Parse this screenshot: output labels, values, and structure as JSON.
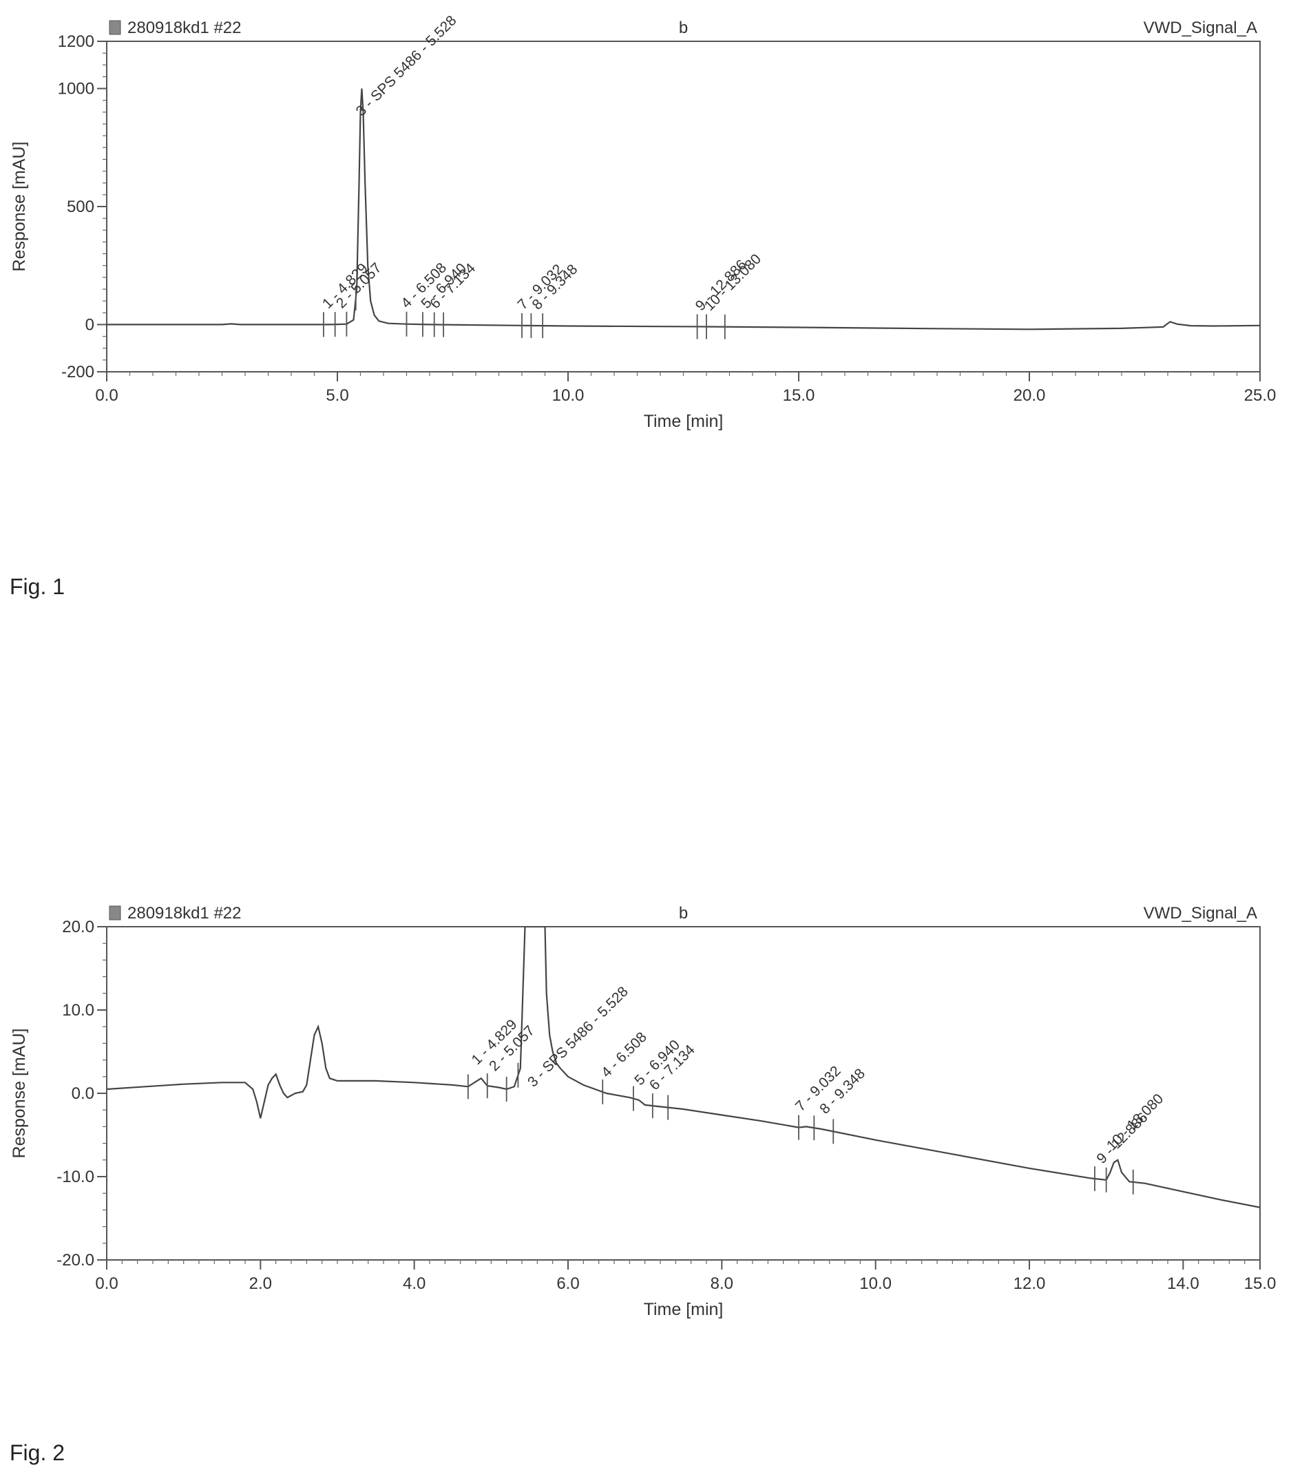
{
  "chart_data": [
    {
      "type": "line",
      "header_left": "280918kd1 #22",
      "header_center": "b",
      "header_right": "VWD_Signal_A",
      "xlabel": "Time [min]",
      "ylabel": "Response [mAU]",
      "xlim": [
        0,
        25
      ],
      "ylim": [
        -200,
        1200
      ],
      "x_ticks": [
        0,
        5,
        10,
        15,
        20,
        25
      ],
      "x_tick_labels": [
        "0.0",
        "5.0",
        "10.0",
        "15.0",
        "20.0",
        "25.0"
      ],
      "y_ticks": [
        -200,
        0,
        500,
        1000,
        1200
      ],
      "y_tick_labels": [
        "-200",
        "0",
        "500",
        "1000",
        "1200"
      ],
      "series": [
        {
          "points": [
            [
              0,
              0
            ],
            [
              2.5,
              0
            ],
            [
              2.7,
              3
            ],
            [
              2.9,
              0
            ],
            [
              4.8,
              0
            ],
            [
              5.0,
              1
            ],
            [
              5.2,
              2
            ],
            [
              5.35,
              20
            ],
            [
              5.42,
              150
            ],
            [
              5.47,
              600
            ],
            [
              5.5,
              900
            ],
            [
              5.528,
              1000
            ],
            [
              5.56,
              900
            ],
            [
              5.6,
              600
            ],
            [
              5.66,
              250
            ],
            [
              5.72,
              100
            ],
            [
              5.8,
              40
            ],
            [
              5.9,
              15
            ],
            [
              6.1,
              5
            ],
            [
              6.5,
              2
            ],
            [
              7,
              0
            ],
            [
              9,
              -4
            ],
            [
              10,
              -6
            ],
            [
              12,
              -8
            ],
            [
              13,
              -9
            ],
            [
              15,
              -12
            ],
            [
              18,
              -17
            ],
            [
              20,
              -20
            ],
            [
              22,
              -16
            ],
            [
              22.9,
              -10
            ],
            [
              23.05,
              12
            ],
            [
              23.2,
              2
            ],
            [
              23.5,
              -5
            ],
            [
              24,
              -6
            ],
            [
              25,
              -4
            ]
          ]
        }
      ],
      "peak_labels": [
        {
          "x": 4.8,
          "text": "1 - 4.829"
        },
        {
          "x": 5.1,
          "text": "2 - 5.057"
        },
        {
          "x": 5.528,
          "text": "3 - SPS 5486 - 5.528"
        },
        {
          "x": 6.508,
          "text": "4 - 6.508"
        },
        {
          "x": 6.94,
          "text": "5 - 6.940"
        },
        {
          "x": 7.134,
          "text": "6 - 7.134"
        },
        {
          "x": 9.032,
          "text": "7 - 9.032"
        },
        {
          "x": 9.348,
          "text": "8 - 9.348"
        },
        {
          "x": 12.886,
          "text": "9 - 12.886"
        },
        {
          "x": 13.08,
          "text": "10 - 13.080"
        }
      ],
      "boundary_marks": [
        4.7,
        4.95,
        5.2,
        5.4,
        6.5,
        6.85,
        7.1,
        7.3,
        9.0,
        9.2,
        9.45,
        12.8,
        13.0,
        13.4
      ]
    },
    {
      "type": "line",
      "header_left": "280918kd1 #22",
      "header_center": "b",
      "header_right": "VWD_Signal_A",
      "xlabel": "Time [min]",
      "ylabel": "Response [mAU]",
      "xlim": [
        0,
        15
      ],
      "ylim": [
        -20,
        20
      ],
      "x_ticks": [
        0,
        2,
        4,
        6,
        8,
        10,
        12,
        14,
        15
      ],
      "x_tick_labels": [
        "0.0",
        "2.0",
        "4.0",
        "6.0",
        "8.0",
        "10.0",
        "12.0",
        "14.0",
        "15.0"
      ],
      "y_ticks": [
        -20,
        -10,
        0,
        10,
        20
      ],
      "y_tick_labels": [
        "-20.0",
        "-10.0",
        "0.0",
        "10.0",
        "20.0"
      ],
      "series": [
        {
          "points": [
            [
              0,
              0.5
            ],
            [
              0.5,
              0.8
            ],
            [
              1,
              1.1
            ],
            [
              1.5,
              1.3
            ],
            [
              1.8,
              1.3
            ],
            [
              1.9,
              0.5
            ],
            [
              1.95,
              -1
            ],
            [
              2.0,
              -3
            ],
            [
              2.05,
              -1
            ],
            [
              2.1,
              1
            ],
            [
              2.15,
              1.8
            ],
            [
              2.2,
              2.3
            ],
            [
              2.25,
              1
            ],
            [
              2.3,
              0
            ],
            [
              2.35,
              -0.5
            ],
            [
              2.45,
              0
            ],
            [
              2.55,
              0.2
            ],
            [
              2.6,
              1
            ],
            [
              2.65,
              4
            ],
            [
              2.7,
              7
            ],
            [
              2.75,
              8
            ],
            [
              2.8,
              6
            ],
            [
              2.85,
              3
            ],
            [
              2.9,
              1.8
            ],
            [
              3.0,
              1.5
            ],
            [
              3.5,
              1.5
            ],
            [
              4.0,
              1.3
            ],
            [
              4.5,
              1.0
            ],
            [
              4.7,
              0.8
            ],
            [
              4.8,
              1.4
            ],
            [
              4.87,
              1.8
            ],
            [
              4.95,
              0.9
            ],
            [
              5.1,
              0.7
            ],
            [
              5.2,
              0.5
            ],
            [
              5.3,
              0.8
            ],
            [
              5.38,
              3
            ],
            [
              5.44,
              20
            ],
            [
              5.46,
              20
            ],
            [
              5.7,
              20
            ],
            [
              5.72,
              12
            ],
            [
              5.76,
              7
            ],
            [
              5.8,
              5
            ],
            [
              5.85,
              3.6
            ],
            [
              5.9,
              3
            ],
            [
              6.0,
              2
            ],
            [
              6.2,
              1
            ],
            [
              6.5,
              0
            ],
            [
              6.8,
              -0.5
            ],
            [
              6.92,
              -0.8
            ],
            [
              7.0,
              -1.4
            ],
            [
              7.2,
              -1.6
            ],
            [
              7.5,
              -1.9
            ],
            [
              8,
              -2.6
            ],
            [
              8.5,
              -3.3
            ],
            [
              9.0,
              -4.1
            ],
            [
              9.1,
              -4.0
            ],
            [
              9.3,
              -4.3
            ],
            [
              10,
              -5.6
            ],
            [
              11,
              -7.3
            ],
            [
              12,
              -9.0
            ],
            [
              12.8,
              -10.2
            ],
            [
              13.0,
              -10.4
            ],
            [
              13.05,
              -9.5
            ],
            [
              13.1,
              -8.3
            ],
            [
              13.15,
              -8.0
            ],
            [
              13.2,
              -9.5
            ],
            [
              13.3,
              -10.6
            ],
            [
              13.5,
              -10.8
            ],
            [
              14,
              -11.8
            ],
            [
              14.5,
              -12.8
            ],
            [
              15,
              -13.7
            ]
          ]
        }
      ],
      "peak_labels": [
        {
          "x": 4.82,
          "text": "1 - 4.829"
        },
        {
          "x": 5.05,
          "text": "2 - 5.057"
        },
        {
          "x": 5.55,
          "text": "3 - SPS 5486 - 5.528"
        },
        {
          "x": 6.508,
          "text": "4 - 6.508"
        },
        {
          "x": 6.94,
          "text": "5 - 6.940"
        },
        {
          "x": 7.134,
          "text": "6 - 7.134"
        },
        {
          "x": 9.032,
          "text": "7 - 9.032"
        },
        {
          "x": 9.348,
          "text": "8 - 9.348"
        },
        {
          "x": 12.95,
          "text": "9 - 12.886"
        },
        {
          "x": 13.08,
          "text": "10 - 13.080"
        }
      ],
      "boundary_marks": [
        4.7,
        4.95,
        5.2,
        5.35,
        6.45,
        6.85,
        7.1,
        7.3,
        9.0,
        9.2,
        9.45,
        12.85,
        13.0,
        13.35
      ]
    }
  ],
  "captions": {
    "fig1": "Fig. 1",
    "fig2": "Fig. 2"
  }
}
